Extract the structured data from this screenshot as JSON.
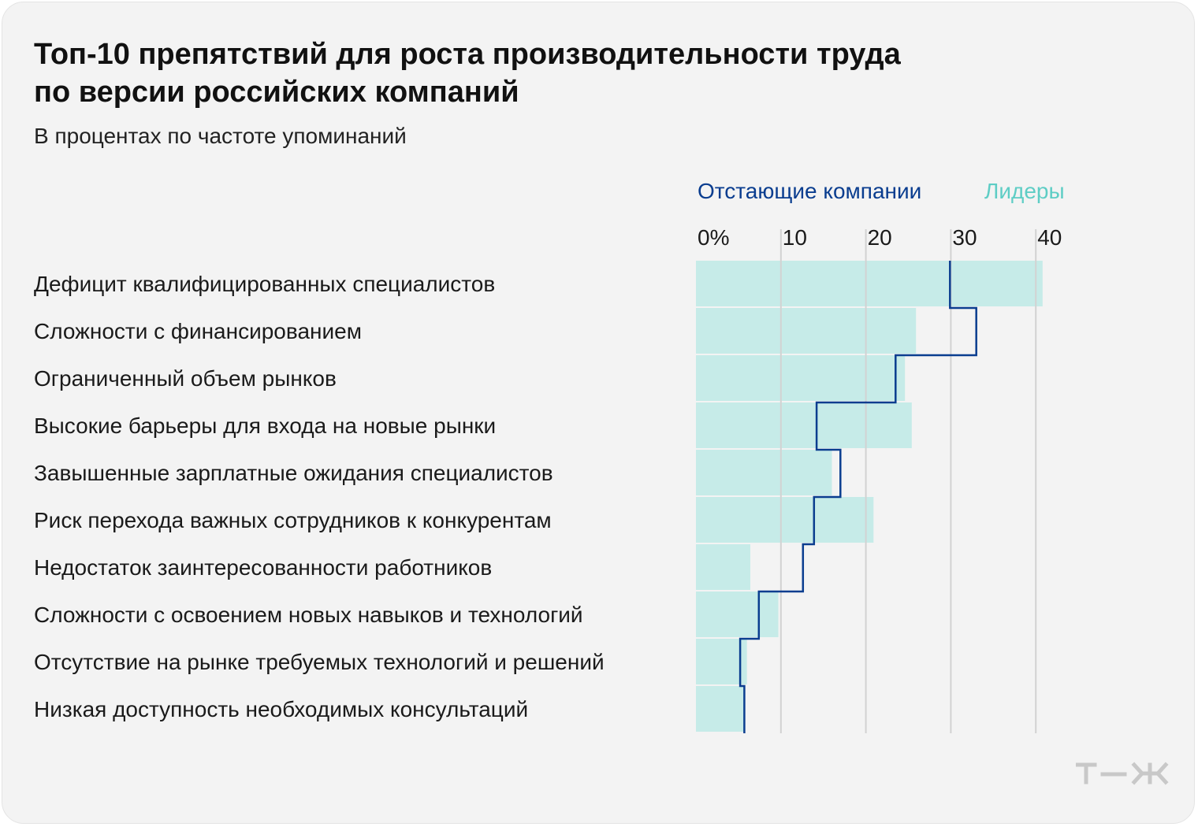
{
  "chart_data": {
    "type": "bar",
    "title": [
      "Топ-10 препятствий для роста производительности труда",
      "по версии российских компаний"
    ],
    "subtitle": "В процентах по частоте упоминаний",
    "categories": [
      "Дефицит квалифицированных специалистов",
      "Сложности с финансированием",
      "Ограниченный объем рынков",
      "Высокие барьеры для входа на новые рынки",
      "Завышенные зарплатные ожидания специалистов",
      "Риск перехода важных сотрудников к конкурентам",
      "Недостаток заинтересованности работников",
      "Сложности с освоением новых навыков и технологий",
      "Отсутствие на рынке требуемых технологий и решений",
      "Низкая доступность необходимых консультаций"
    ],
    "series": [
      {
        "name": "Лидеры",
        "style": "bar",
        "color": "#c6ebe8",
        "values": [
          40.8,
          25.9,
          24.6,
          25.4,
          16.0,
          20.9,
          6.4,
          9.7,
          6.0,
          5.8
        ]
      },
      {
        "name": "Отстающие компании",
        "style": "step-line",
        "color": "#0a3d8f",
        "values": [
          29.9,
          33.0,
          23.5,
          14.2,
          17.0,
          13.9,
          12.6,
          7.4,
          5.2,
          5.7
        ]
      }
    ],
    "x_ticks": [
      "0%",
      "10",
      "20",
      "30",
      "40"
    ],
    "x_tick_values": [
      0,
      10,
      20,
      30,
      40
    ],
    "xlim": [
      0,
      42
    ],
    "legend_position": "top-right",
    "grid": true,
    "colors": {
      "leaders": "#5ecdc5",
      "laggards": "#0a3d8f",
      "bar": "#c6ebe8",
      "grid": "#d2d2d2",
      "background": "#f3f3f3"
    }
  },
  "logo": {
    "name": "tzh-logo",
    "color": "#c8c8c8"
  }
}
